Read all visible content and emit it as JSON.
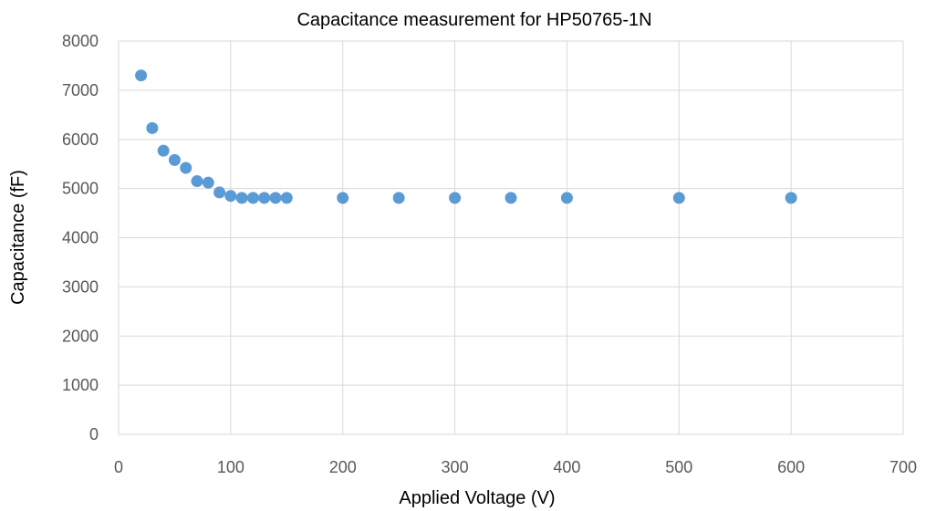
{
  "chart_data": {
    "type": "scatter",
    "title": "Capacitance measurement for HP50765-1N",
    "xlabel": "Applied Voltage (V)",
    "ylabel": "Capacitance (fF)",
    "xlim": [
      0,
      700
    ],
    "ylim": [
      0,
      8000
    ],
    "x_ticks": [
      0,
      100,
      200,
      300,
      400,
      500,
      600,
      700
    ],
    "y_ticks": [
      0,
      1000,
      2000,
      3000,
      4000,
      5000,
      6000,
      7000,
      8000
    ],
    "grid": true,
    "legend": "none",
    "marker_color": "#5b9bd5",
    "series": [
      {
        "points": [
          {
            "x": 20,
            "y": 7300
          },
          {
            "x": 30,
            "y": 6230
          },
          {
            "x": 40,
            "y": 5770
          },
          {
            "x": 50,
            "y": 5580
          },
          {
            "x": 60,
            "y": 5420
          },
          {
            "x": 70,
            "y": 5150
          },
          {
            "x": 80,
            "y": 5120
          },
          {
            "x": 90,
            "y": 4920
          },
          {
            "x": 100,
            "y": 4850
          },
          {
            "x": 110,
            "y": 4810
          },
          {
            "x": 120,
            "y": 4810
          },
          {
            "x": 130,
            "y": 4810
          },
          {
            "x": 140,
            "y": 4810
          },
          {
            "x": 150,
            "y": 4810
          },
          {
            "x": 200,
            "y": 4810
          },
          {
            "x": 250,
            "y": 4810
          },
          {
            "x": 300,
            "y": 4810
          },
          {
            "x": 350,
            "y": 4810
          },
          {
            "x": 400,
            "y": 4810
          },
          {
            "x": 500,
            "y": 4810
          },
          {
            "x": 600,
            "y": 4810
          }
        ]
      }
    ]
  }
}
